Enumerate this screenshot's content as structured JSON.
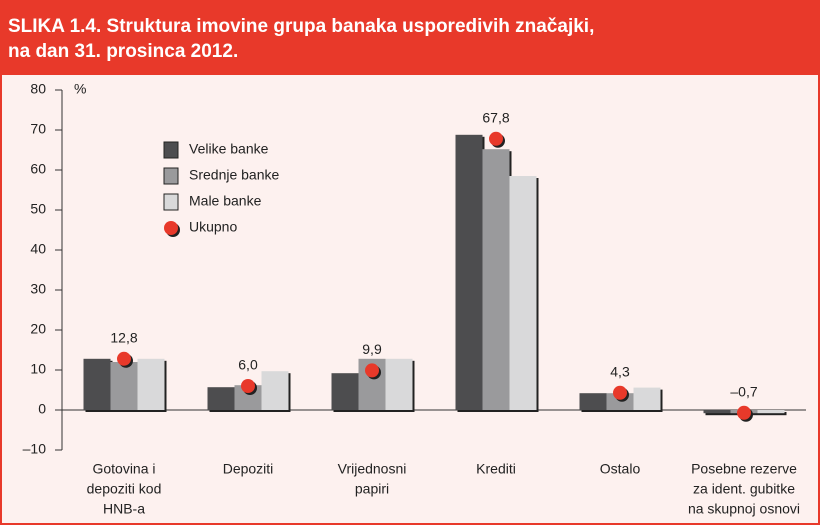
{
  "chart_data": {
    "type": "bar",
    "title": [
      "SLIKA 1.4. Struktura imovine grupa banaka usporedivih značajki,",
      "na dan 31. prosinca 2012."
    ],
    "y_label": "%",
    "categories": [
      [
        "Gotovina i",
        "depoziti kod",
        "HNB-a"
      ],
      [
        "Depoziti"
      ],
      [
        "Vrijednosni",
        "papiri"
      ],
      [
        "Krediti"
      ],
      [
        "Ostalo"
      ],
      [
        "Posebne rezerve",
        "za ident. gubitke",
        "na skupnoj osnovi"
      ]
    ],
    "series": [
      {
        "name": "Velike banke",
        "color": "#4d4d4f",
        "values": [
          12.8,
          5.7,
          9.2,
          68.8,
          4.2,
          -0.8
        ]
      },
      {
        "name": "Srednje banke",
        "color": "#9a9a9c",
        "values": [
          12.0,
          6.2,
          12.8,
          65.2,
          4.2,
          -0.8
        ]
      },
      {
        "name": "Male banke",
        "color": "#d9d9da",
        "values": [
          12.8,
          9.7,
          12.8,
          58.5,
          5.6,
          -0.8
        ]
      },
      {
        "name": "Ukupno",
        "type": "dot",
        "color": "#e8392a",
        "values": [
          12.8,
          6.0,
          9.9,
          67.8,
          4.3,
          -0.7
        ],
        "value_labels": [
          "12,8",
          "6,0",
          "9,9",
          "67,8",
          "4,3",
          "–0,7"
        ]
      }
    ],
    "ylim": [
      -10,
      80
    ],
    "yticks": [
      {
        "value": -10,
        "label": "–10"
      },
      0,
      10,
      20,
      30,
      40,
      50,
      60,
      70,
      80
    ]
  }
}
